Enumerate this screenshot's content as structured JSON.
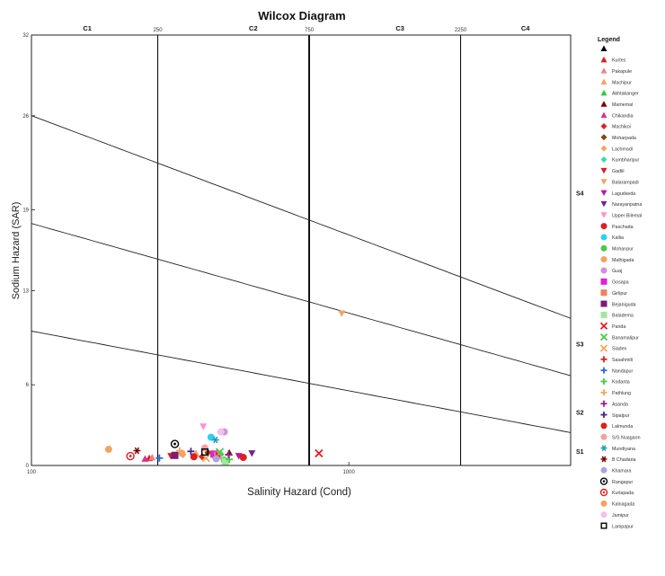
{
  "chart_data": {
    "type": "scatter",
    "title": "Wilcox Diagram",
    "xlabel": "Salinity Hazard (Cond)",
    "ylabel": "Sodium Hazard (SAR)",
    "x_tick_labels": [
      {
        "value": 100,
        "label": "100"
      },
      {
        "value": 1000,
        "label": "1000"
      }
    ],
    "y_ticks": [
      0,
      6,
      13,
      19,
      26,
      32
    ],
    "xlim": [
      100,
      5000
    ],
    "ylim": [
      0,
      32
    ],
    "x_scale": "log",
    "salinity_classes": [
      {
        "label": "C1",
        "x": 150
      },
      {
        "label": "C2",
        "x": 500
      },
      {
        "label": "C3",
        "x": 1450
      },
      {
        "label": "C4",
        "x": 3600
      }
    ],
    "salinity_boundaries": [
      {
        "value": 250,
        "label": "250"
      },
      {
        "value": 750,
        "label": "750"
      },
      {
        "value": 2250,
        "label": "2250"
      }
    ],
    "sodium_classes": [
      {
        "label": "S4",
        "y": 20.2
      },
      {
        "label": "S3",
        "y": 9.0
      },
      {
        "label": "S2",
        "y": 3.9
      },
      {
        "label": "S1",
        "y": 1.0
      }
    ],
    "legend_title": "Legend",
    "legend_position": "right",
    "series": [
      {
        "name": "",
        "marker": "triangle",
        "color": "#000000",
        "x": [],
        "y": []
      },
      {
        "name": "Kurtes",
        "marker": "triangle",
        "color": "#e11d1d",
        "x": [
          235
        ],
        "y": [
          0.55
        ]
      },
      {
        "name": "Pakapule",
        "marker": "triangle",
        "color": "#f08080",
        "x": [
          240
        ],
        "y": [
          0.6
        ]
      },
      {
        "name": "Machipur",
        "marker": "triangle",
        "color": "#f4a460",
        "x": [
          330
        ],
        "y": [
          0.9
        ]
      },
      {
        "name": "Akhtakanger",
        "marker": "triangle",
        "color": "#2ecc40",
        "x": [
          380
        ],
        "y": [
          0.75
        ]
      },
      {
        "name": "Mamemal",
        "marker": "triangle",
        "color": "#7a0000",
        "x": [
          420
        ],
        "y": [
          0.95
        ]
      },
      {
        "name": "Chikandia",
        "marker": "triangle",
        "color": "#e0308c",
        "x": [
          228
        ],
        "y": [
          0.5
        ]
      },
      {
        "name": "Machikoi",
        "marker": "diamond",
        "color": "#d62728",
        "x": [
          345
        ],
        "y": [
          0.65
        ]
      },
      {
        "name": "Moharpada",
        "marker": "diamond",
        "color": "#8b4513",
        "x": [
          360
        ],
        "y": [
          0.95
        ]
      },
      {
        "name": "Lachmadi",
        "marker": "diamond",
        "color": "#f4a460",
        "x": [
          300
        ],
        "y": [
          0.8
        ]
      },
      {
        "name": "Kumbharipur",
        "marker": "diamond",
        "color": "#3cd9b0",
        "x": [
          395
        ],
        "y": [
          0.85
        ]
      },
      {
        "name": "Gadili",
        "marker": "tri-down",
        "color": "#e11d1d",
        "x": [
          275
        ],
        "y": [
          0.7
        ]
      },
      {
        "name": "Balarampadi",
        "marker": "tri-down",
        "color": "#f4a460",
        "x": [
          950
        ],
        "y": [
          11.3
        ]
      },
      {
        "name": "Lagudavda",
        "marker": "tri-down",
        "color": "#c0149b",
        "x": [
          450
        ],
        "y": [
          0.7
        ]
      },
      {
        "name": "Narayanpatna",
        "marker": "tri-down",
        "color": "#6a2a8c",
        "x": [
          495
        ],
        "y": [
          0.9
        ]
      },
      {
        "name": "Upper Bilemal",
        "marker": "tri-down",
        "color": "#ff8fd0",
        "x": [
          348
        ],
        "y": [
          2.9
        ]
      },
      {
        "name": "Paschada",
        "marker": "circle",
        "color": "#e11d1d",
        "x": [
          465
        ],
        "y": [
          0.6
        ]
      },
      {
        "name": "Kallia",
        "marker": "circle",
        "color": "#2fd0ef",
        "x": [
          368
        ],
        "y": [
          2.1
        ]
      },
      {
        "name": "Mohanpur",
        "marker": "circle",
        "color": "#44cc44",
        "x": [
          405
        ],
        "y": [
          0.4
        ]
      },
      {
        "name": "Malhigada",
        "marker": "circle",
        "color": "#f4a460",
        "x": [
          175
        ],
        "y": [
          1.2
        ]
      },
      {
        "name": "Guaj",
        "marker": "circle",
        "color": "#d48ce0",
        "x": [
          405
        ],
        "y": [
          2.5
        ]
      },
      {
        "name": "Gosapa",
        "marker": "square",
        "color": "#e020d8",
        "x": [
          376
        ],
        "y": [
          0.85
        ]
      },
      {
        "name": "Girlipur",
        "marker": "square",
        "color": "#f08060",
        "x": [
          386
        ],
        "y": [
          0.75
        ]
      },
      {
        "name": "Bejaniguda",
        "marker": "square",
        "color": "#7a1a7a",
        "x": [
          283
        ],
        "y": [
          0.75
        ]
      },
      {
        "name": "Baladema",
        "marker": "square",
        "color": "#a0e8a0",
        "x": [
          408
        ],
        "y": [
          0.3
        ]
      },
      {
        "name": "Panda",
        "marker": "x",
        "color": "#e11d1d",
        "x": [
          805
        ],
        "y": [
          0.9
        ]
      },
      {
        "name": "Banamalipur",
        "marker": "x",
        "color": "#44cc44",
        "x": [
          392
        ],
        "y": [
          1.0
        ]
      },
      {
        "name": "Siaden",
        "marker": "x",
        "color": "#f4a460",
        "x": [
          355
        ],
        "y": [
          0.55
        ]
      },
      {
        "name": "Sasahmili",
        "marker": "plus",
        "color": "#e11d1d",
        "x": [
          383
        ],
        "y": [
          0.7
        ]
      },
      {
        "name": "Nandapur",
        "marker": "plus",
        "color": "#2a6ad8",
        "x": [
          253
        ],
        "y": [
          0.55
        ]
      },
      {
        "name": "Kodanta",
        "marker": "plus",
        "color": "#44cc44",
        "x": [
          420
        ],
        "y": [
          0.45
        ]
      },
      {
        "name": "Pathlung",
        "marker": "plus",
        "color": "#f4a460",
        "x": [
          293
        ],
        "y": [
          1.1
        ]
      },
      {
        "name": "Asanda",
        "marker": "plus",
        "color": "#a0208c",
        "x": [
          418
        ],
        "y": [
          0.8
        ]
      },
      {
        "name": "Sipalpur",
        "marker": "plus",
        "color": "#3a2a8c",
        "x": [
          318
        ],
        "y": [
          1.05
        ]
      },
      {
        "name": "Lalmunda",
        "marker": "circle",
        "color": "#e11d1d",
        "x": [
          325
        ],
        "y": [
          0.65
        ]
      },
      {
        "name": "S/S Nuagaon",
        "marker": "circle",
        "color": "#f4a0a0",
        "x": [
          352
        ],
        "y": [
          1.3
        ]
      },
      {
        "name": "Mundiyana",
        "marker": "asterisk",
        "color": "#1a9ac0",
        "x": [
          380
        ],
        "y": [
          1.9
        ]
      },
      {
        "name": "B Chadaria",
        "marker": "asterisk",
        "color": "#7a0000",
        "x": [
          215
        ],
        "y": [
          1.1
        ]
      },
      {
        "name": "Khamara",
        "marker": "circle",
        "color": "#b0a0e8",
        "x": [
          382
        ],
        "y": [
          0.5
        ]
      },
      {
        "name": "Rangapur",
        "marker": "target",
        "color": "#000000",
        "x": [
          283
        ],
        "y": [
          1.6
        ]
      },
      {
        "name": "Kurlapada",
        "marker": "target",
        "color": "#e11d1d",
        "x": [
          205
        ],
        "y": [
          0.7
        ]
      },
      {
        "name": "Kalnagada",
        "marker": "circle",
        "color": "#f4a460",
        "x": [
          298
        ],
        "y": [
          0.9
        ]
      },
      {
        "name": "Jamipur",
        "marker": "circle",
        "color": "#f0c0f0",
        "x": [
          395
        ],
        "y": [
          2.5
        ]
      },
      {
        "name": "Lampapur",
        "marker": "box",
        "color": "#000000",
        "x": [
          352
        ],
        "y": [
          1.0
        ]
      }
    ]
  }
}
